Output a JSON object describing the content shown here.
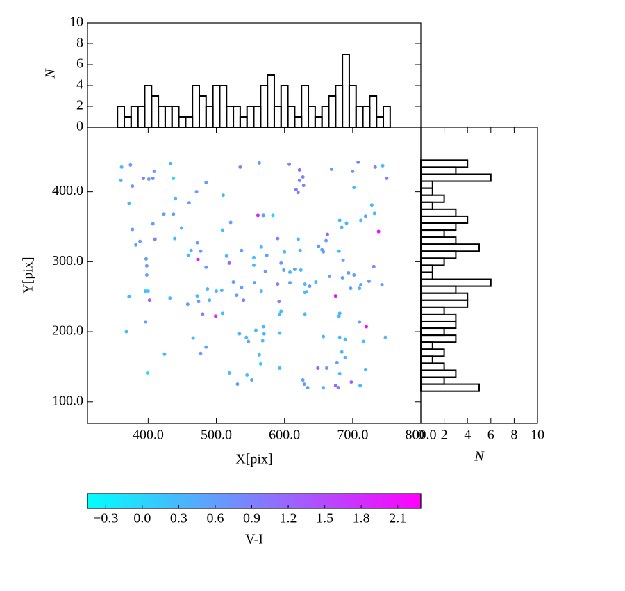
{
  "chart_data": [
    {
      "type": "scatter",
      "xlabel": "X[pix]",
      "ylabel": "Y[pix]",
      "xlim": [
        311,
        800
      ],
      "ylim": [
        69,
        492
      ],
      "xticks": [
        {
          "value": 400,
          "label": "400.0"
        },
        {
          "value": 500,
          "label": "500.0"
        },
        {
          "value": 600,
          "label": "600.0"
        },
        {
          "value": 700,
          "label": "700.0"
        },
        {
          "value": 800,
          "label": "800.0"
        }
      ],
      "yticks": [
        {
          "value": 100,
          "label": "100.0"
        },
        {
          "value": 200,
          "label": "200.0"
        },
        {
          "value": 300,
          "label": "300.0"
        },
        {
          "value": 400,
          "label": "400.0"
        }
      ],
      "x": [
        361,
        374,
        360,
        372,
        377,
        377,
        382,
        388,
        393,
        401,
        409,
        407,
        397,
        398,
        407,
        410,
        398,
        396,
        400,
        402,
        372,
        368,
        396,
        399,
        424,
        432,
        433,
        437,
        440,
        423,
        437,
        449,
        439,
        460,
        471,
        485,
        459,
        463,
        472,
        477,
        473,
        485,
        472,
        474,
        458,
        487,
        490,
        500,
        508,
        480,
        499,
        509,
        466,
        477,
        485,
        510,
        509,
        521,
        515,
        519,
        525,
        530,
        537,
        540,
        519,
        531,
        534,
        544,
        547,
        545,
        552,
        535,
        563,
        537,
        555,
        555,
        561,
        569,
        583,
        566,
        574,
        572,
        556,
        566,
        558,
        569,
        570,
        568,
        565,
        563,
        590,
        595,
        599,
        590,
        600,
        592,
        593,
        595,
        593,
        593,
        607,
        622,
        627,
        622,
        617,
        620,
        628,
        608,
        608,
        620,
        623,
        615,
        624,
        630,
        630,
        632,
        637,
        630,
        646,
        650,
        655,
        663,
        661,
        657,
        666,
        649,
        662,
        627,
        629,
        634,
        657,
        669,
        680,
        681,
        691,
        684,
        686,
        685,
        694,
        697,
        675,
        681,
        680,
        681,
        689,
        684,
        689,
        677,
        681,
        675,
        679,
        657,
        702,
        708,
        700,
        712,
        719,
        702,
        710,
        712,
        724,
        710,
        720,
        716,
        719,
        698,
        711,
        728,
        733,
        744,
        750,
        732,
        738,
        731,
        743,
        748
      ],
      "y": [
        435,
        438,
        416,
        383,
        408,
        346,
        324,
        329,
        419,
        418,
        429,
        419,
        304,
        294,
        354,
        332,
        281,
        258,
        258,
        245,
        250,
        200,
        214,
        141,
        168,
        248,
        440,
        419,
        390,
        368,
        368,
        348,
        333,
        384,
        400,
        413,
        309,
        316,
        327,
        315,
        303,
        292,
        251,
        243,
        239,
        261,
        245,
        258,
        259,
        225,
        222,
        226,
        191,
        169,
        178,
        395,
        345,
        356,
        308,
        298,
        271,
        252,
        263,
        245,
        141,
        125,
        197,
        192,
        186,
        138,
        131,
        435,
        441,
        316,
        306,
        295,
        366,
        366,
        366,
        321,
        309,
        286,
        270,
        258,
        202,
        207,
        197,
        187,
        154,
        167,
        333,
        298,
        288,
        268,
        314,
        243,
        225,
        229,
        198,
        148,
        439,
        431,
        421,
        416,
        403,
        399,
        409,
        285,
        270,
        332,
        316,
        289,
        288,
        268,
        256,
        257,
        265,
        225,
        271,
        322,
        317,
        339,
        330,
        314,
        279,
        148,
        148,
        131,
        125,
        120,
        120,
        432,
        315,
        359,
        355,
        349,
        302,
        277,
        284,
        262,
        251,
        226,
        222,
        192,
        189,
        171,
        163,
        156,
        140,
        123,
        120,
        193,
        406,
        442,
        429,
        359,
        365,
        281,
        262,
        267,
        272,
        214,
        207,
        186,
        146,
        128,
        123,
        381,
        435,
        437,
        419,
        369,
        343,
        293,
        267,
        192
      ],
      "c": [
        0.3,
        0.6,
        0.3,
        0.3,
        0.6,
        0.6,
        0.6,
        0.6,
        1.0,
        0.6,
        0.6,
        0.9,
        0.6,
        0.6,
        0.6,
        0.9,
        0.6,
        0.3,
        0.0,
        1.3,
        0.3,
        0.3,
        0.6,
        -0.1,
        0.3,
        0.3,
        0.3,
        -0.1,
        0.3,
        0.6,
        0.6,
        0.3,
        0.3,
        0.6,
        0.6,
        0.6,
        0.3,
        0.3,
        0.6,
        0.6,
        2.1,
        0.6,
        0.3,
        0.6,
        0.6,
        0.3,
        0.3,
        0.3,
        0.3,
        0.9,
        1.9,
        0.3,
        0.3,
        0.6,
        0.6,
        0.3,
        0.3,
        0.6,
        0.3,
        1.2,
        0.6,
        0.6,
        0.6,
        0.9,
        0.3,
        0.6,
        0.3,
        0.3,
        0.6,
        0.3,
        0.6,
        0.9,
        0.6,
        0.6,
        0.3,
        0.3,
        1.9,
        0.6,
        0.0,
        0.3,
        0.6,
        0.6,
        0.6,
        0.3,
        0.3,
        0.3,
        0.3,
        0.3,
        0.0,
        0.3,
        0.9,
        0.6,
        0.6,
        0.9,
        0.3,
        0.9,
        0.3,
        0.3,
        0.3,
        0.3,
        0.9,
        1.2,
        0.9,
        0.9,
        1.0,
        0.9,
        0.9,
        0.3,
        0.6,
        0.3,
        0.3,
        0.6,
        0.3,
        0.3,
        0.3,
        0.3,
        0.6,
        0.3,
        0.3,
        0.6,
        0.6,
        1.2,
        0.6,
        0.6,
        0.6,
        1.2,
        0.6,
        0.6,
        0.6,
        0.6,
        0.3,
        0.6,
        0.3,
        0.3,
        0.3,
        0.3,
        0.6,
        0.6,
        0.6,
        0.6,
        2.1,
        0.3,
        0.3,
        0.3,
        0.3,
        0.3,
        0.3,
        0.6,
        0.3,
        1.2,
        1.0,
        0.3,
        0.3,
        0.9,
        0.6,
        0.3,
        0.6,
        0.6,
        0.3,
        0.6,
        0.6,
        0.6,
        2.2,
        0.3,
        0.3,
        1.2,
        0.3,
        0.3,
        0.9,
        0.3,
        0.9,
        0.3,
        2.1,
        0.9,
        0.6,
        0.3
      ],
      "colorbar": {
        "label": "V-I",
        "cmap": [
          "#00ffff",
          "#ff00ff"
        ],
        "lim": [
          -0.45,
          2.29
        ],
        "ticks": [
          {
            "value": -0.3,
            "label": "−0.3"
          },
          {
            "value": 0,
            "label": "0.0"
          },
          0.3,
          0.6,
          0.9,
          1.2,
          1.5,
          1.8,
          2.1
        ]
      }
    },
    {
      "type": "histogram",
      "orientation": "vertical",
      "ylabel": "N",
      "color": "#000000",
      "xlim": [
        311,
        800
      ],
      "ylim": [
        0,
        10
      ],
      "yticks": [
        0,
        2,
        4,
        6,
        8,
        10
      ],
      "bins": [
        355,
        365,
        375,
        385,
        395,
        405,
        415,
        425,
        435,
        445,
        455,
        465,
        475,
        485,
        495,
        505,
        515,
        525,
        535,
        545,
        555,
        565,
        575,
        585,
        595,
        605,
        615,
        625,
        635,
        645,
        655,
        665,
        675,
        685,
        695,
        705,
        715,
        725,
        735,
        745,
        755
      ],
      "values": [
        2,
        1,
        2,
        2,
        4,
        3,
        2,
        2,
        2,
        1,
        1,
        4,
        3,
        2,
        4,
        4,
        2,
        2,
        1,
        2,
        2,
        4,
        5,
        2,
        4,
        2,
        1,
        4,
        2,
        1,
        2,
        3,
        4,
        7,
        4,
        2,
        2,
        3,
        1,
        2
      ]
    },
    {
      "type": "histogram",
      "orientation": "horizontal",
      "xlabel": "N",
      "color": "#000000",
      "xlim": [
        0,
        10
      ],
      "xticks": [
        0,
        2,
        4,
        6,
        8,
        10
      ],
      "ylim": [
        69,
        492
      ],
      "bins": [
        115,
        125,
        135,
        145,
        155,
        165,
        175,
        185,
        195,
        205,
        215,
        225,
        235,
        245,
        255,
        265,
        275,
        285,
        295,
        305,
        315,
        325,
        335,
        345,
        355,
        365,
        375,
        385,
        395,
        405,
        415,
        425,
        435,
        445
      ],
      "values": [
        5,
        2,
        3,
        2,
        1,
        2,
        1,
        3,
        2,
        3,
        3,
        2,
        4,
        4,
        3,
        6,
        1,
        1,
        2,
        3,
        5,
        3,
        2,
        3,
        4,
        3,
        1,
        2,
        1,
        1,
        6,
        3,
        4
      ]
    }
  ]
}
